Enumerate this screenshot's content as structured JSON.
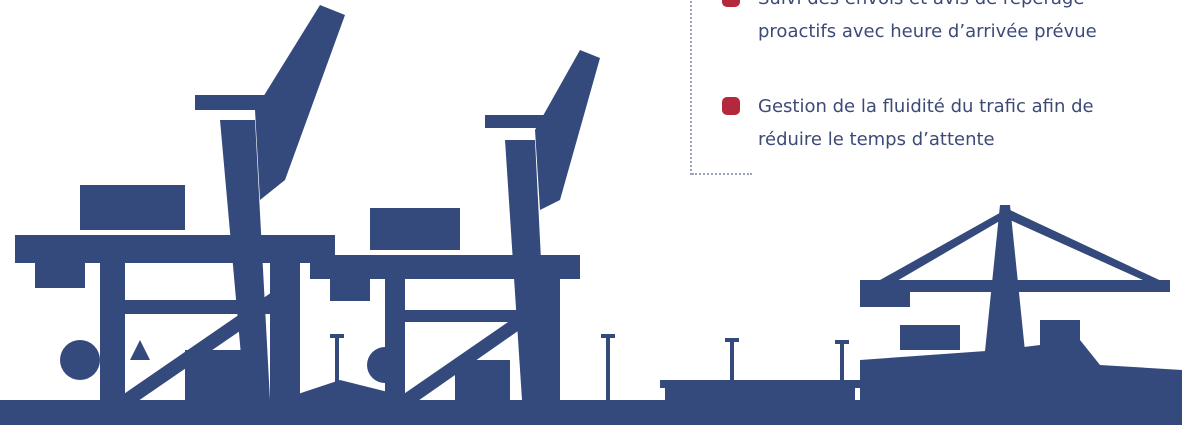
{
  "features": [
    {
      "lines": [
        "Suivi des envois et avis de repérage",
        "proactifs avec heure d’arrivée prévue"
      ]
    },
    {
      "lines": [
        "Gestion de la fluidité du trafic afin de",
        "réduire le temps d’attente"
      ]
    }
  ]
}
